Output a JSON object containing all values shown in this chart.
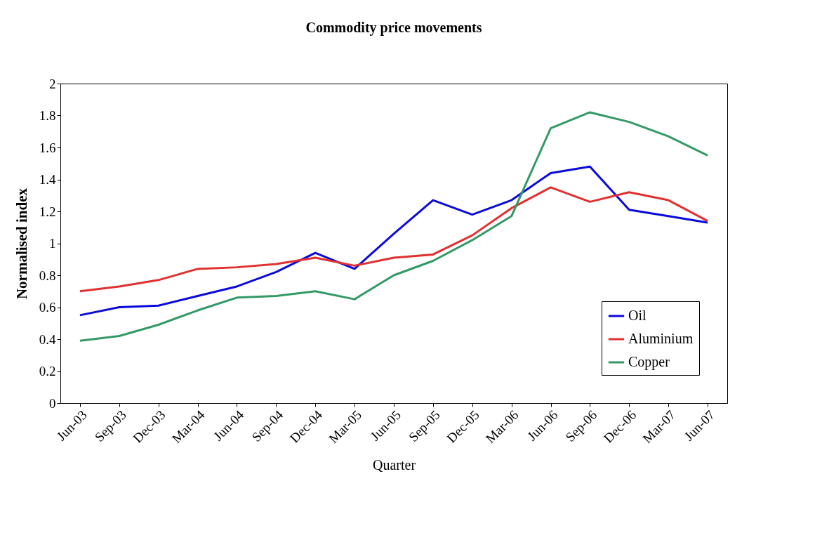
{
  "chart_data": {
    "type": "line",
    "title": "Commodity price movements",
    "xlabel": "Quarter",
    "ylabel": "Normalised index",
    "categories": [
      "Jun-03",
      "Sep-03",
      "Dec-03",
      "Mar-04",
      "Jun-04",
      "Sep-04",
      "Dec-04",
      "Mar-05",
      "Jun-05",
      "Sep-05",
      "Dec-05",
      "Mar-06",
      "Jun-06",
      "Sep-06",
      "Dec-06",
      "Mar-07",
      "Jun-07"
    ],
    "series": [
      {
        "name": "Oil",
        "color": "#0a0adc",
        "values": [
          0.55,
          0.6,
          0.61,
          0.67,
          0.73,
          0.82,
          0.94,
          0.84,
          1.06,
          1.27,
          1.18,
          1.27,
          1.44,
          1.48,
          1.21,
          1.17,
          1.13
        ]
      },
      {
        "name": "Aluminium",
        "color": "#e03030",
        "values": [
          0.7,
          0.73,
          0.77,
          0.84,
          0.85,
          0.87,
          0.91,
          0.86,
          0.91,
          0.93,
          1.05,
          1.22,
          1.35,
          1.26,
          1.32,
          1.27,
          1.14
        ]
      },
      {
        "name": "Copper",
        "color": "#339966",
        "values": [
          0.39,
          0.42,
          0.49,
          0.58,
          0.66,
          0.67,
          0.7,
          0.65,
          0.8,
          0.89,
          1.02,
          1.17,
          1.72,
          1.82,
          1.76,
          1.67,
          1.55
        ]
      }
    ],
    "ylim": [
      0,
      2
    ],
    "yticks": [
      0,
      0.2,
      0.4,
      0.6,
      0.8,
      1,
      1.2,
      1.4,
      1.6,
      1.8,
      2
    ],
    "grid": false,
    "legend": "bottom right",
    "marker": "none",
    "line_style": "solid"
  }
}
